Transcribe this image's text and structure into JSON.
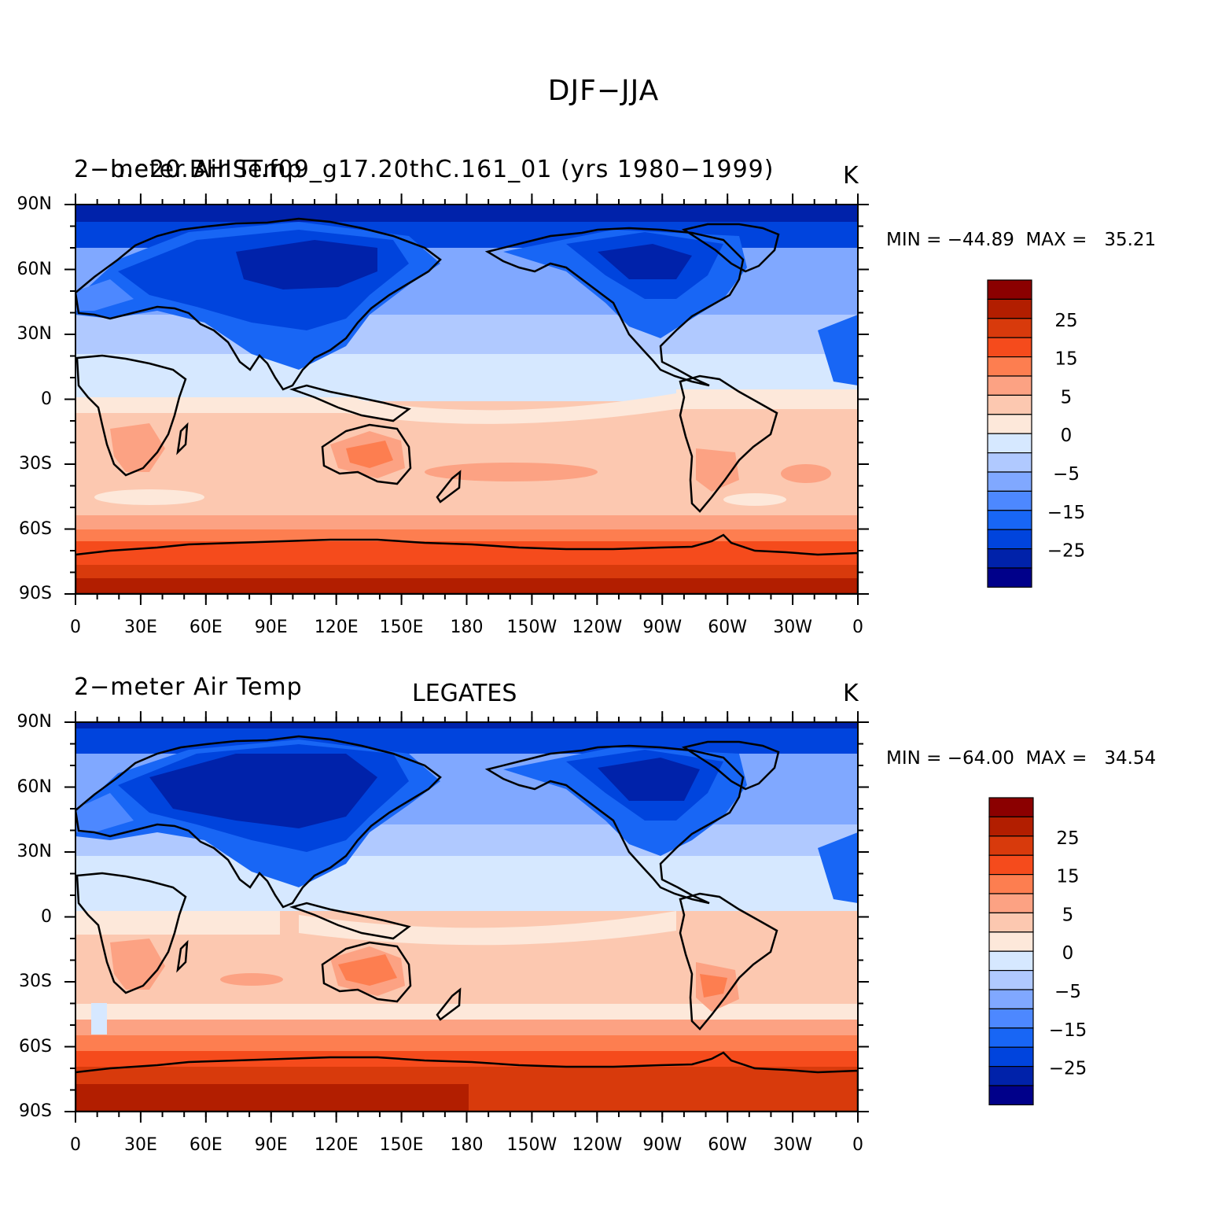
{
  "title": "DJF−JJA",
  "palette": [
    "#00008a",
    "#0022aa",
    "#0044dd",
    "#1866f5",
    "#4d88ff",
    "#80a8ff",
    "#b0c9ff",
    "#d6e8ff",
    "#fde8da",
    "#fcc8b0",
    "#fca283",
    "#fd7e50",
    "#f54b1c",
    "#d83a0c",
    "#b21e00",
    "#8b0000"
  ],
  "colorbar_labels": [
    "25",
    "15",
    "5",
    "0",
    "−5",
    "−15",
    "−25"
  ],
  "x_ticks": [
    "0",
    "30E",
    "60E",
    "90E",
    "120E",
    "150E",
    "180",
    "150W",
    "120W",
    "90W",
    "60W",
    "30W",
    "0"
  ],
  "y_ticks": [
    "90N",
    "60N",
    "30N",
    "0",
    "30S",
    "60S",
    "90S"
  ],
  "panels": [
    {
      "left_title": "2−meter Air Temp",
      "center_title": "b.e20.BHIST.f09_g17.20thC.161_01 (yrs 1980−1999)",
      "units": "K",
      "min_max": "MIN = −44.89  MAX =   35.21"
    },
    {
      "left_title": "2−meter Air Temp",
      "center_title": "LEGATES",
      "units": "K",
      "min_max": "MIN = −64.00  MAX =   34.54"
    }
  ]
}
